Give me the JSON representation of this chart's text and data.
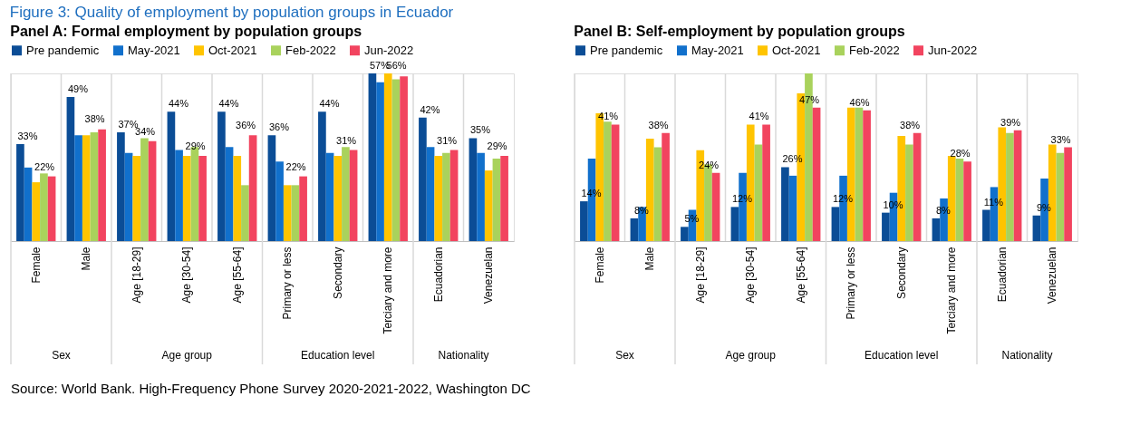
{
  "chart_data": [
    {
      "type": "bar",
      "title": "Panel A: Formal employment by population groups",
      "categories": [
        "Female",
        "Male",
        "Age [18-29]",
        "Age [30-54]",
        "Age [55-64]",
        "Primary or less",
        "Secondary",
        "Terciary and more",
        "Ecuadorian",
        "Venezuelan"
      ],
      "series": [
        {
          "name": "Pre pandemic",
          "color": "#0b4d96",
          "values": [
            33,
            49,
            37,
            44,
            44,
            36,
            44,
            57,
            42,
            35
          ],
          "value_labels": [
            "33%",
            "49%",
            "37%",
            "44%",
            "44%",
            "36%",
            "44%",
            "57%",
            "42%",
            "35%"
          ]
        },
        {
          "name": "May-2021",
          "color": "#1170cc",
          "values": [
            25,
            36,
            30,
            31,
            32,
            27,
            30,
            54,
            32,
            30
          ]
        },
        {
          "name": "Oct-2021",
          "color": "#ffc400",
          "values": [
            20,
            36,
            29,
            29,
            29,
            19,
            29,
            57,
            29,
            24
          ]
        },
        {
          "name": "Feb-2022",
          "color": "#a9d25c",
          "values": [
            23,
            37,
            35,
            32,
            19,
            19,
            32,
            55,
            30,
            28
          ]
        },
        {
          "name": "Jun-2022",
          "color": "#f2445f",
          "values": [
            22,
            38,
            34,
            29,
            36,
            22,
            31,
            56,
            31,
            29
          ],
          "value_labels": [
            "22%",
            "38%",
            "34%",
            "29%",
            "36%",
            "22%",
            "31%",
            "56%",
            "31%",
            "29%"
          ]
        }
      ],
      "legend": "top",
      "grid": "x",
      "annotations": [
        "Figure 3: Quality of employment by population groups in Ecuador",
        "Source: World Bank. High-Frequency Phone Survey 2020-2021-2022, Washington DC",
        "Sex",
        "Age group",
        "Education level",
        "Nationality"
      ]
    },
    {
      "type": "bar",
      "title": "Panel B: Self-employment by population groups",
      "categories": [
        "Female",
        "Male",
        "Age [18-29]",
        "Age [30-54]",
        "Age [55-64]",
        "Primary or less",
        "Secondary",
        "Terciary and more",
        "Ecuadorian",
        "Venezuelan"
      ],
      "series": [
        {
          "name": "Pre pandemic",
          "color": "#0b4d96",
          "values": [
            14,
            8,
            5,
            12,
            26,
            12,
            10,
            8,
            11,
            9
          ],
          "value_labels": [
            "14%",
            "8%",
            "5%",
            "12%",
            "26%",
            "12%",
            "10%",
            "8%",
            "11%",
            "9%"
          ]
        },
        {
          "name": "May-2021",
          "color": "#1170cc",
          "values": [
            29,
            12,
            11,
            24,
            23,
            23,
            17,
            15,
            19,
            22
          ]
        },
        {
          "name": "Oct-2021",
          "color": "#ffc400",
          "values": [
            45,
            36,
            32,
            41,
            52,
            47,
            37,
            30,
            40,
            34
          ]
        },
        {
          "name": "Feb-2022",
          "color": "#a9d25c",
          "values": [
            42,
            33,
            27,
            34,
            59,
            47,
            34,
            29,
            38,
            31
          ]
        },
        {
          "name": "Jun-2022",
          "color": "#f2445f",
          "values": [
            41,
            38,
            24,
            41,
            47,
            46,
            38,
            28,
            39,
            33
          ],
          "value_labels": [
            "41%",
            "38%",
            "24%",
            "41%",
            "47%",
            "46%",
            "38%",
            "28%",
            "39%",
            "33%"
          ]
        }
      ],
      "legend": "top",
      "grid": "x",
      "annotations": [
        "Sex",
        "Age group",
        "Education level",
        "Nationality"
      ]
    }
  ]
}
